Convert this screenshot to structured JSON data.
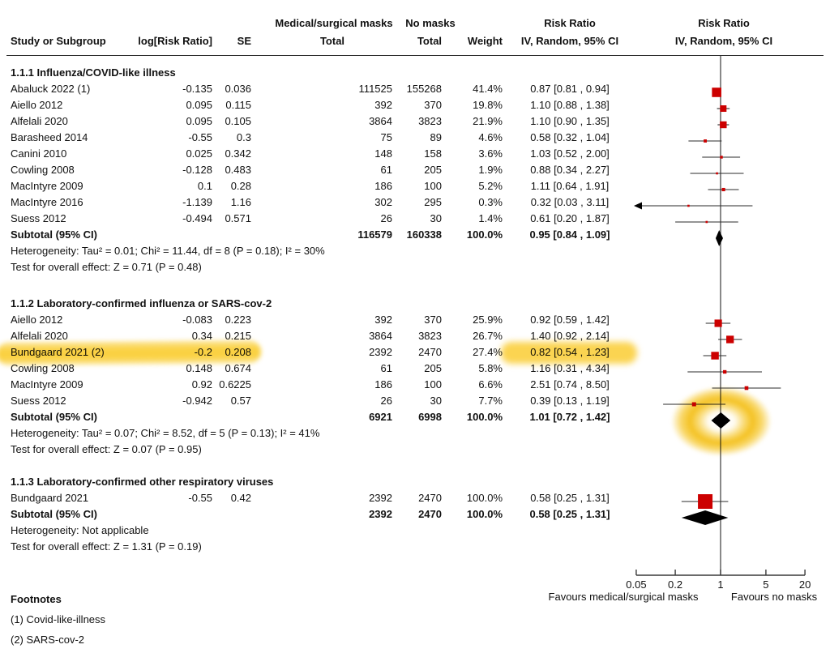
{
  "header": {
    "col_study": "Study or Subgroup",
    "col_log_rr": "log[Risk Ratio]",
    "col_se": "SE",
    "group_masks": "Medical/surgical masks",
    "group_no_masks": "No masks",
    "col_total": "Total",
    "col_weight": "Weight",
    "risk_ratio": "Risk Ratio",
    "method": "IV, Random, 95% CI"
  },
  "footnotes": {
    "title": "Footnotes",
    "items": [
      "(1) Covid-like-illness",
      "(2) SARS-cov-2"
    ]
  },
  "colors": {
    "marker_red": "#CC0000",
    "diamond_black": "#000000",
    "highlight_yellow": "#F4C230",
    "line_dark": "#3a3a3a"
  },
  "chart_data": {
    "type": "scatter",
    "subtype": "forest-plot-meta-analysis",
    "effect_measure": "Risk Ratio",
    "model": "IV, Random, 95% CI",
    "x_scale": "log",
    "x_range": [
      0.05,
      20
    ],
    "axis": {
      "tick_labels": [
        "0.05",
        "0.2",
        "1",
        "5",
        "20"
      ],
      "tick_values": [
        0.05,
        0.2,
        1,
        5,
        20
      ],
      "left_label": "Favours medical/surgical masks",
      "right_label": "Favours no masks"
    },
    "sections": [
      {
        "title": "1.1.1 Influenza/COVID-like illness",
        "studies": [
          {
            "name": "Abaluck 2022 (1)",
            "log_rr": "-0.135",
            "se": "0.036",
            "masks_total": "111525",
            "no_masks_total": "155268",
            "weight": "41.4%",
            "ci_text": "0.87 [0.81 , 0.94]",
            "rr": 0.87,
            "ci_low": 0.81,
            "ci_high": 0.94,
            "weight_value": 41.4,
            "highlighted": false
          },
          {
            "name": "Aiello 2012",
            "log_rr": "0.095",
            "se": "0.115",
            "masks_total": "392",
            "no_masks_total": "370",
            "weight": "19.8%",
            "ci_text": "1.10 [0.88 , 1.38]",
            "rr": 1.1,
            "ci_low": 0.88,
            "ci_high": 1.38,
            "weight_value": 19.8,
            "highlighted": false
          },
          {
            "name": "Alfelali 2020",
            "log_rr": "0.095",
            "se": "0.105",
            "masks_total": "3864",
            "no_masks_total": "3823",
            "weight": "21.9%",
            "ci_text": "1.10 [0.90 , 1.35]",
            "rr": 1.1,
            "ci_low": 0.9,
            "ci_high": 1.35,
            "weight_value": 21.9,
            "highlighted": false
          },
          {
            "name": "Barasheed 2014",
            "log_rr": "-0.55",
            "se": "0.3",
            "masks_total": "75",
            "no_masks_total": "89",
            "weight": "4.6%",
            "ci_text": "0.58 [0.32 , 1.04]",
            "rr": 0.58,
            "ci_low": 0.32,
            "ci_high": 1.04,
            "weight_value": 4.6,
            "highlighted": false
          },
          {
            "name": "Canini 2010",
            "log_rr": "0.025",
            "se": "0.342",
            "masks_total": "148",
            "no_masks_total": "158",
            "weight": "3.6%",
            "ci_text": "1.03 [0.52 , 2.00]",
            "rr": 1.03,
            "ci_low": 0.52,
            "ci_high": 2.0,
            "weight_value": 3.6,
            "highlighted": false
          },
          {
            "name": "Cowling 2008",
            "log_rr": "-0.128",
            "se": "0.483",
            "masks_total": "61",
            "no_masks_total": "205",
            "weight": "1.9%",
            "ci_text": "0.88 [0.34 , 2.27]",
            "rr": 0.88,
            "ci_low": 0.34,
            "ci_high": 2.27,
            "weight_value": 1.9,
            "highlighted": false
          },
          {
            "name": "MacIntyre 2009",
            "log_rr": "0.1",
            "se": "0.28",
            "masks_total": "186",
            "no_masks_total": "100",
            "weight": "5.2%",
            "ci_text": "1.11 [0.64 , 1.91]",
            "rr": 1.11,
            "ci_low": 0.64,
            "ci_high": 1.91,
            "weight_value": 5.2,
            "highlighted": false
          },
          {
            "name": "MacIntyre 2016",
            "log_rr": "-1.139",
            "se": "1.16",
            "masks_total": "302",
            "no_masks_total": "295",
            "weight": "0.3%",
            "ci_text": "0.32 [0.03 , 3.11]",
            "rr": 0.32,
            "ci_low": 0.03,
            "ci_high": 3.11,
            "weight_value": 0.3,
            "highlighted": false
          },
          {
            "name": "Suess 2012",
            "log_rr": "-0.494",
            "se": "0.571",
            "masks_total": "26",
            "no_masks_total": "30",
            "weight": "1.4%",
            "ci_text": "0.61 [0.20 , 1.87]",
            "rr": 0.61,
            "ci_low": 0.2,
            "ci_high": 1.87,
            "weight_value": 1.4,
            "highlighted": false
          }
        ],
        "subtotal": {
          "label": "Subtotal (95% CI)",
          "masks_total": "116579",
          "no_masks_total": "160338",
          "weight": "100.0%",
          "ci_text": "0.95 [0.84 , 1.09]",
          "rr": 0.95,
          "ci_low": 0.84,
          "ci_high": 1.09,
          "highlighted": false
        },
        "heterogeneity": "Heterogeneity: Tau² = 0.01; Chi² = 11.44, df = 8 (P = 0.18); I² = 30%",
        "overall_effect": "Test for overall effect: Z = 0.71 (P = 0.48)"
      },
      {
        "title": "1.1.2 Laboratory-confirmed influenza or SARS-cov-2",
        "studies": [
          {
            "name": "Aiello 2012",
            "log_rr": "-0.083",
            "se": "0.223",
            "masks_total": "392",
            "no_masks_total": "370",
            "weight": "25.9%",
            "ci_text": "0.92 [0.59 , 1.42]",
            "rr": 0.92,
            "ci_low": 0.59,
            "ci_high": 1.42,
            "weight_value": 25.9,
            "highlighted": false
          },
          {
            "name": "Alfelali 2020",
            "log_rr": "0.34",
            "se": "0.215",
            "masks_total": "3864",
            "no_masks_total": "3823",
            "weight": "26.7%",
            "ci_text": "1.40 [0.92 , 2.14]",
            "rr": 1.4,
            "ci_low": 0.92,
            "ci_high": 2.14,
            "weight_value": 26.7,
            "highlighted": false
          },
          {
            "name": "Bundgaard 2021 (2)",
            "log_rr": "-0.2",
            "se": "0.208",
            "masks_total": "2392",
            "no_masks_total": "2470",
            "weight": "27.4%",
            "ci_text": "0.82 [0.54 , 1.23]",
            "rr": 0.82,
            "ci_low": 0.54,
            "ci_high": 1.23,
            "weight_value": 27.4,
            "highlighted": true
          },
          {
            "name": "Cowling 2008",
            "log_rr": "0.148",
            "se": "0.674",
            "masks_total": "61",
            "no_masks_total": "205",
            "weight": "5.8%",
            "ci_text": "1.16 [0.31 , 4.34]",
            "rr": 1.16,
            "ci_low": 0.31,
            "ci_high": 4.34,
            "weight_value": 5.8,
            "highlighted": false
          },
          {
            "name": "MacIntyre 2009",
            "log_rr": "0.92",
            "se": "0.6225",
            "masks_total": "186",
            "no_masks_total": "100",
            "weight": "6.6%",
            "ci_text": "2.51 [0.74 , 8.50]",
            "rr": 2.51,
            "ci_low": 0.74,
            "ci_high": 8.5,
            "weight_value": 6.6,
            "highlighted": false
          },
          {
            "name": "Suess 2012",
            "log_rr": "-0.942",
            "se": "0.57",
            "masks_total": "26",
            "no_masks_total": "30",
            "weight": "7.7%",
            "ci_text": "0.39 [0.13 , 1.19]",
            "rr": 0.39,
            "ci_low": 0.13,
            "ci_high": 1.19,
            "weight_value": 7.7,
            "highlighted": false
          }
        ],
        "subtotal": {
          "label": "Subtotal (95% CI)",
          "masks_total": "6921",
          "no_masks_total": "6998",
          "weight": "100.0%",
          "ci_text": "1.01 [0.72 , 1.42]",
          "rr": 1.01,
          "ci_low": 0.72,
          "ci_high": 1.42,
          "highlighted": true
        },
        "heterogeneity": "Heterogeneity: Tau² = 0.07; Chi² = 8.52, df = 5 (P = 0.13); I² = 41%",
        "overall_effect": "Test for overall effect: Z = 0.07 (P = 0.95)"
      },
      {
        "title": "1.1.3 Laboratory-confirmed other respiratory viruses",
        "studies": [
          {
            "name": "Bundgaard 2021",
            "log_rr": "-0.55",
            "se": "0.42",
            "masks_total": "2392",
            "no_masks_total": "2470",
            "weight": "100.0%",
            "ci_text": "0.58 [0.25 , 1.31]",
            "rr": 0.58,
            "ci_low": 0.25,
            "ci_high": 1.31,
            "weight_value": 100.0,
            "highlighted": false
          }
        ],
        "subtotal": {
          "label": "Subtotal (95% CI)",
          "masks_total": "2392",
          "no_masks_total": "2470",
          "weight": "100.0%",
          "ci_text": "0.58 [0.25 , 1.31]",
          "rr": 0.58,
          "ci_low": 0.25,
          "ci_high": 1.31,
          "highlighted": false
        },
        "heterogeneity": "Heterogeneity: Not applicable",
        "overall_effect": "Test for overall effect: Z = 1.31 (P = 0.19)"
      }
    ]
  }
}
